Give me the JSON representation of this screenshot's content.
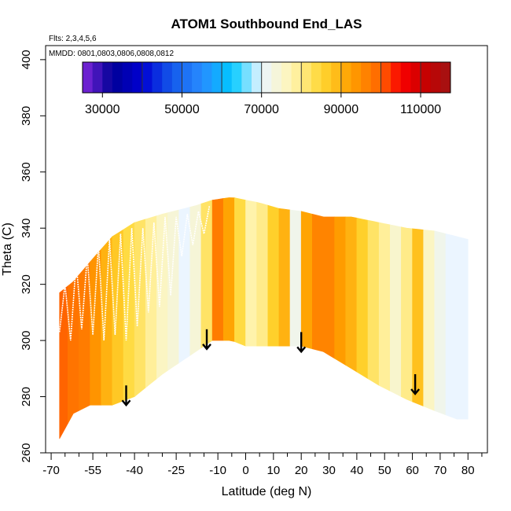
{
  "chart_data": {
    "type": "heatmap",
    "title": "ATOM1 Southbound End_LAS",
    "flights_label": "Flts: 2,3,4,5,6",
    "dates_label": "MMDD: 0801,0803,0806,0808,0812",
    "xlabel": "Latitude (deg N)",
    "ylabel": "Theta (C)",
    "xlim": [
      -72,
      87
    ],
    "ylim": [
      260,
      405
    ],
    "x_ticks": [
      -70,
      -55,
      -40,
      -25,
      -10,
      0,
      10,
      20,
      30,
      40,
      50,
      60,
      70,
      80
    ],
    "x_minor_ticks": [
      -65,
      -60,
      -50,
      -45,
      -35,
      -30,
      -20,
      -15,
      -5,
      5,
      15,
      25,
      35,
      45,
      55,
      65,
      75,
      85
    ],
    "y_ticks": [
      260,
      280,
      300,
      320,
      340,
      360,
      380,
      400
    ],
    "colorbar": {
      "min": 25000,
      "max": 117500,
      "step": 2500,
      "ticks": [
        30000,
        50000,
        70000,
        90000,
        110000
      ],
      "dividers": [
        40000,
        50000,
        60000,
        70000,
        80000,
        90000,
        100000,
        110000
      ]
    },
    "envelope": {
      "lat": [
        -67,
        -62,
        -56,
        -48,
        -40,
        -30,
        -18,
        -12,
        -5,
        0,
        5,
        12,
        20,
        28,
        38,
        48,
        58,
        68,
        76,
        80
      ],
      "bottom": [
        265,
        274,
        277,
        277,
        280,
        288,
        296,
        300,
        300,
        298,
        298,
        298,
        298,
        296,
        290,
        284,
        279,
        275,
        272,
        272
      ],
      "top": [
        317,
        321,
        328,
        337,
        342,
        345,
        348,
        350,
        351,
        350,
        349,
        347,
        346,
        344,
        344,
        342,
        340,
        339,
        337,
        336
      ]
    },
    "columns": [
      {
        "lat": -66,
        "value": 100000
      },
      {
        "lat": -62,
        "value": 98000
      },
      {
        "lat": -58,
        "value": 97000
      },
      {
        "lat": -54,
        "value": 94000
      },
      {
        "lat": -50,
        "value": 90000
      },
      {
        "lat": -46,
        "value": 87000
      },
      {
        "lat": -42,
        "value": 84000
      },
      {
        "lat": -38,
        "value": 82000
      },
      {
        "lat": -34,
        "value": 79000
      },
      {
        "lat": -30,
        "value": 76000
      },
      {
        "lat": -26,
        "value": 74000
      },
      {
        "lat": -22,
        "value": 70000
      },
      {
        "lat": -18,
        "value": 74000
      },
      {
        "lat": -14,
        "value": 82000
      },
      {
        "lat": -10,
        "value": 97000
      },
      {
        "lat": -6,
        "value": 92000
      },
      {
        "lat": -2,
        "value": 84000
      },
      {
        "lat": 2,
        "value": 78000
      },
      {
        "lat": 6,
        "value": 80000
      },
      {
        "lat": 10,
        "value": 86000
      },
      {
        "lat": 14,
        "value": 90000
      },
      {
        "lat": 18,
        "value": 72000
      },
      {
        "lat": 22,
        "value": 92000
      },
      {
        "lat": 26,
        "value": 96000
      },
      {
        "lat": 30,
        "value": 96000
      },
      {
        "lat": 34,
        "value": 93000
      },
      {
        "lat": 38,
        "value": 90000
      },
      {
        "lat": 42,
        "value": 86000
      },
      {
        "lat": 46,
        "value": 82000
      },
      {
        "lat": 50,
        "value": 79000
      },
      {
        "lat": 54,
        "value": 75000
      },
      {
        "lat": 58,
        "value": 80000
      },
      {
        "lat": 62,
        "value": 88000
      },
      {
        "lat": 66,
        "value": 76000
      },
      {
        "lat": 70,
        "value": 72000
      },
      {
        "lat": 74,
        "value": 70000
      },
      {
        "lat": 78,
        "value": 70000
      }
    ],
    "tropopause_trace": {
      "lat": [
        -67,
        -65,
        -63,
        -61,
        -59,
        -57,
        -55,
        -53,
        -51,
        -49,
        -47,
        -45,
        -43,
        -41,
        -39,
        -37,
        -35,
        -33,
        -31,
        -29,
        -27,
        -25,
        -23,
        -21,
        -19,
        -17,
        -15,
        -13
      ],
      "theta": [
        303,
        320,
        300,
        328,
        304,
        330,
        302,
        334,
        300,
        336,
        302,
        338,
        300,
        340,
        305,
        340,
        310,
        342,
        312,
        344,
        316,
        344,
        330,
        345,
        334,
        346,
        338,
        348
      ]
    },
    "arrows": [
      {
        "lat": -43,
        "theta_top": 284,
        "theta_tip": 277
      },
      {
        "lat": -14,
        "theta_top": 304,
        "theta_tip": 297
      },
      {
        "lat": 20,
        "theta_top": 303,
        "theta_tip": 296
      },
      {
        "lat": 61,
        "theta_top": 288,
        "theta_tip": 281
      }
    ]
  }
}
